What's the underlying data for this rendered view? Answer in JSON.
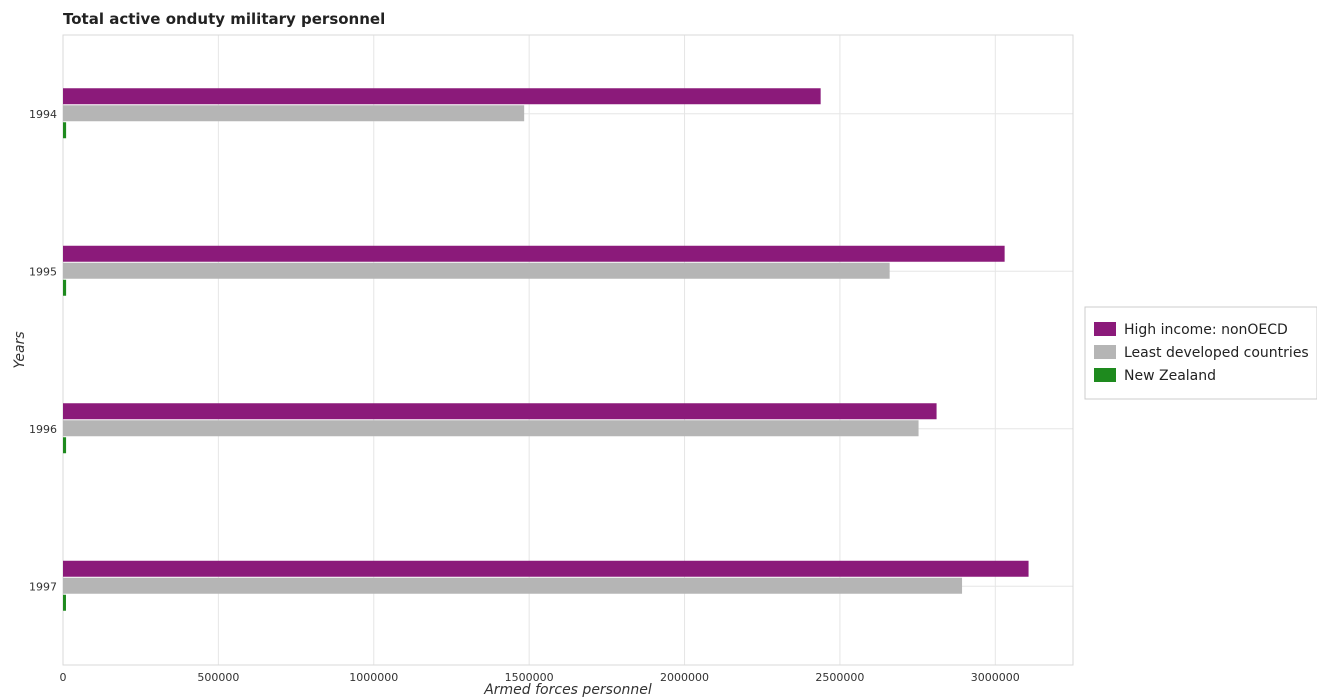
{
  "chart_data": {
    "type": "bar",
    "orientation": "horizontal",
    "title": "Total active onduty military personnel",
    "xlabel": "Armed forces personnel",
    "ylabel": "Years",
    "categories": [
      "1994",
      "1995",
      "1996",
      "1997"
    ],
    "xlim": [
      0,
      3250000
    ],
    "xticks": [
      0,
      500000,
      1000000,
      1500000,
      2000000,
      2500000,
      3000000
    ],
    "xtick_labels": [
      "0",
      "500000",
      "1000000",
      "1500000",
      "2000000",
      "2500000",
      "3000000"
    ],
    "grid": true,
    "legend_position": "right",
    "series": [
      {
        "name": "High income: nonOECD",
        "color": "#8b1a7a",
        "values": [
          2438000,
          3030000,
          2811000,
          3107000
        ]
      },
      {
        "name": "Least developed countries",
        "color": "#b5b5b5",
        "values": [
          1484000,
          2660000,
          2753000,
          2893000
        ]
      },
      {
        "name": "New Zealand",
        "color": "#1e8a1e",
        "values": [
          10000,
          10000,
          9900,
          9600
        ]
      }
    ]
  }
}
